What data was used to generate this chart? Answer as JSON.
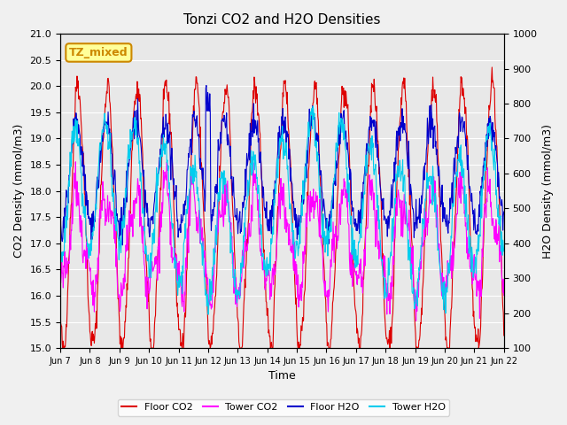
{
  "title": "Tonzi CO2 and H2O Densities",
  "xlabel": "Time",
  "ylabel_left": "CO2 Density (mmol/m3)",
  "ylabel_right": "H2O Density (mmol/m3)",
  "ylim_left": [
    15.0,
    21.0
  ],
  "ylim_right": [
    100,
    1000
  ],
  "x_tick_labels": [
    "Jun 7",
    "Jun 8",
    "Jun 9",
    "Jun 10",
    "Jun 11",
    "Jun 12",
    "Jun 13",
    "Jun 14",
    "Jun 15",
    "Jun 16",
    "Jun 17",
    "Jun 18",
    "Jun 19",
    "Jun 20",
    "Jun 21",
    "Jun 22"
  ],
  "annotation_text": "TZ_mixed",
  "annotation_color": "#cc8800",
  "annotation_bg": "#ffff99",
  "line_colors": {
    "floor_co2": "#dd0000",
    "tower_co2": "#ff00ff",
    "floor_h2o": "#0000cc",
    "tower_h2o": "#00ccee"
  },
  "legend_labels": [
    "Floor CO2",
    "Tower CO2",
    "Floor H2O",
    "Tower H2O"
  ],
  "background_color": "#e8e8e8",
  "grid_color": "#ffffff",
  "n_points": 900,
  "seed": 42
}
